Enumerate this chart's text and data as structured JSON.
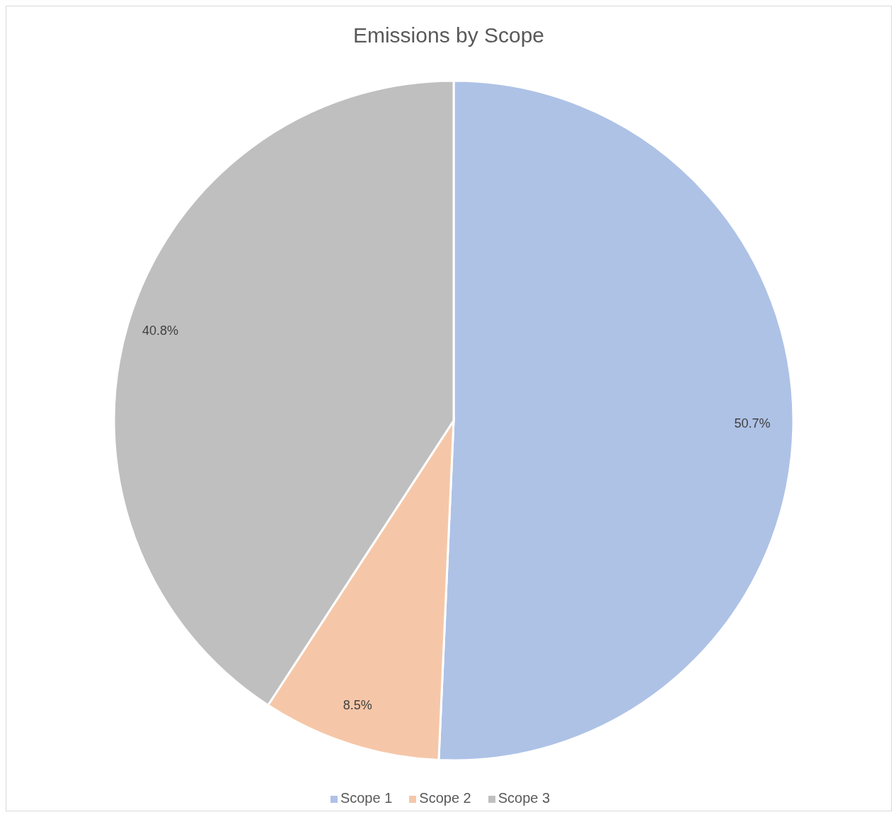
{
  "chart_data": {
    "type": "pie",
    "title": "Emissions by Scope",
    "categories": [
      "Scope 1",
      "Scope 2",
      "Scope 3"
    ],
    "values": [
      50.7,
      8.5,
      40.8
    ],
    "colors": [
      "#aec2e6",
      "#f5c7a8",
      "#bfbfbf"
    ],
    "value_labels": [
      "50.7%",
      "8.5%",
      "40.8%"
    ],
    "legend": "bottom"
  }
}
